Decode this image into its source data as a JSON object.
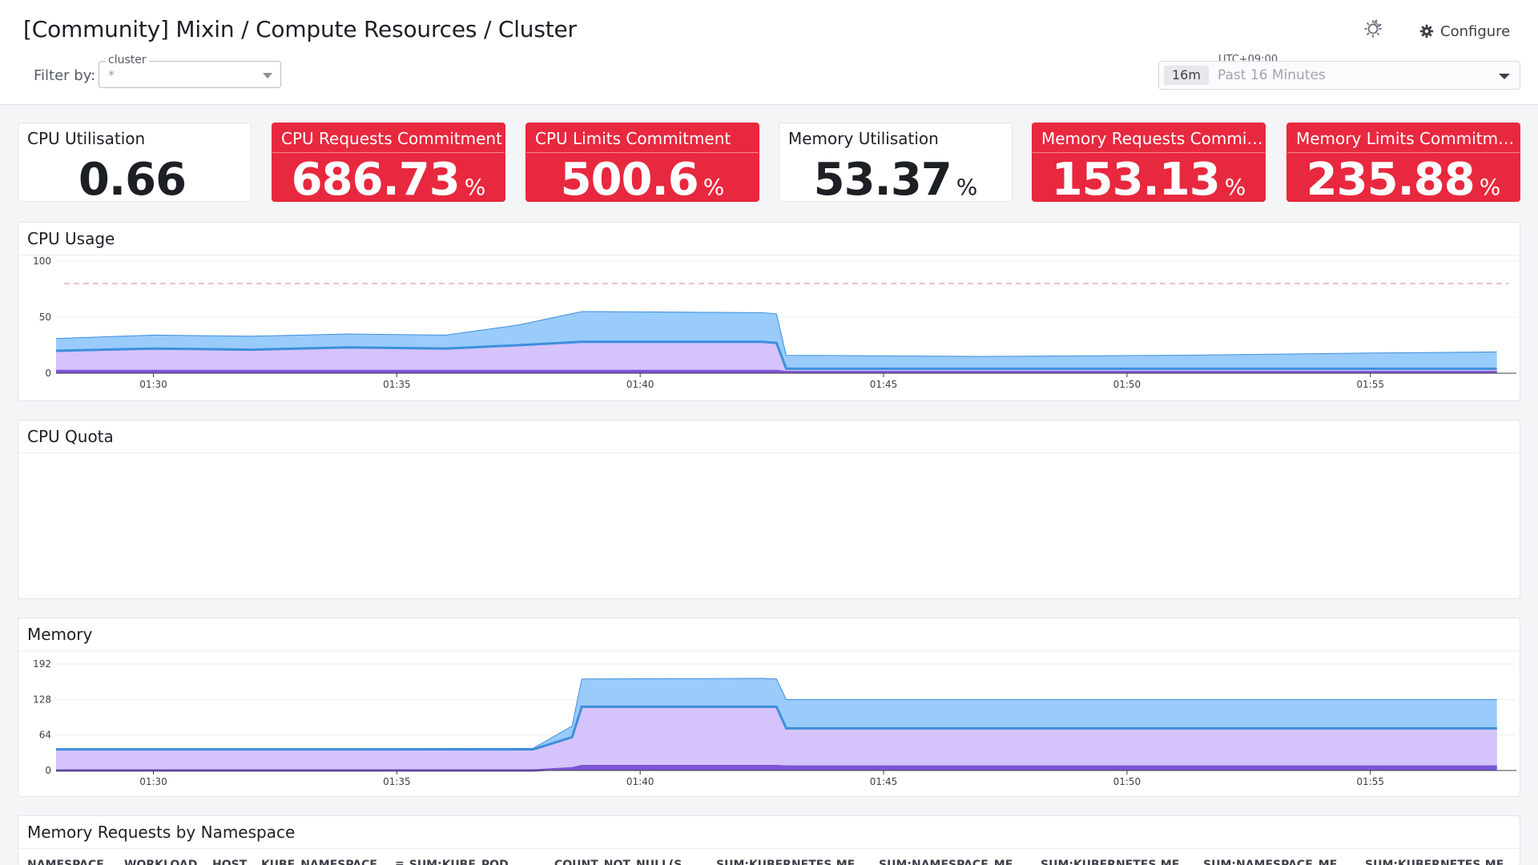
{
  "header": {
    "title": "[Community] Mixin / Compute Resources / Cluster",
    "configure_label": "Configure",
    "filter_label": "Filter by:",
    "cluster_filter": {
      "label": "cluster",
      "value": "*"
    },
    "timezone": "UTC+09:00",
    "time_range": {
      "badge": "16m",
      "label": "Past 16 Minutes"
    }
  },
  "stats": [
    {
      "title": "CPU Utilisation",
      "value": "0.66",
      "unit": "",
      "status": "normal"
    },
    {
      "title": "CPU Requests Commitment",
      "value": "686.73",
      "unit": "%",
      "status": "alert"
    },
    {
      "title": "CPU Limits Commitment",
      "value": "500.6",
      "unit": "%",
      "status": "alert"
    },
    {
      "title": "Memory Utilisation",
      "value": "53.37",
      "unit": "%",
      "status": "normal"
    },
    {
      "title": "Memory Requests Commit...",
      "value": "153.13",
      "unit": "%",
      "status": "alert"
    },
    {
      "title": "Memory Limits Commitment",
      "value": "235.88",
      "unit": "%",
      "status": "alert"
    }
  ],
  "colors": {
    "alert": "#e8283e",
    "series_light_blue": "#99cbfb",
    "series_blue": "#3d8fdb",
    "series_lavender": "#d5c3fb",
    "series_purple": "#7a55d6",
    "threshold": "#e69a9a"
  },
  "panels": {
    "cpu_usage": {
      "title": "CPU Usage"
    },
    "cpu_quota": {
      "title": "CPU Quota"
    },
    "memory": {
      "title": "Memory"
    },
    "mem_requests": {
      "title": "Memory Requests by Namespace",
      "columns": [
        "NAMESPACE",
        "WORKLOAD",
        "HOST",
        "KUBE_NAMESPACE",
        "SUM:KUBE_POD",
        "COUNT_NOT_NULL(S",
        "SUM:KUBERNETES.ME",
        "SUM:NAMESPACE_ME",
        "SUM:KUBERNETES.ME",
        "SUM:NAMESPACE_ME",
        "SUM:KUBERNETES.ME"
      ]
    }
  },
  "chart_data": [
    {
      "type": "area",
      "title": "CPU Usage",
      "x_ticks": [
        "01:30",
        "01:35",
        "01:40",
        "01:45",
        "01:50",
        "01:55"
      ],
      "y_ticks": [
        0,
        50,
        100
      ],
      "ylim": [
        0,
        100
      ],
      "threshold": 80,
      "x_minutes": [
        0,
        2,
        4,
        6,
        8,
        9.5,
        10.8,
        11,
        14.5,
        14.8,
        15,
        19,
        23,
        27,
        29.6
      ],
      "series": [
        {
          "values": [
            31,
            34,
            33,
            35,
            34,
            43,
            55,
            55,
            54,
            53,
            16,
            15,
            16,
            18,
            19
          ]
        },
        {
          "values": [
            20,
            22,
            21,
            23,
            22,
            25,
            28,
            28,
            28,
            27,
            4,
            4,
            4,
            4,
            4
          ]
        },
        {
          "values": [
            2,
            2,
            2,
            2,
            2,
            2,
            2,
            2,
            2,
            2,
            1,
            1,
            1,
            1,
            1
          ]
        }
      ]
    },
    {
      "type": "area",
      "title": "CPU Quota",
      "series": []
    },
    {
      "type": "area",
      "title": "Memory",
      "x_ticks": [
        "01:30",
        "01:35",
        "01:40",
        "01:45",
        "01:50",
        "01:55"
      ],
      "y_ticks": [
        0,
        64,
        128,
        192
      ],
      "ylim": [
        0,
        192
      ],
      "x_minutes": [
        0,
        9.8,
        10.6,
        10.8,
        14.5,
        14.8,
        15,
        29.6
      ],
      "series": [
        {
          "values": [
            38,
            40,
            80,
            165,
            166,
            165,
            128,
            128
          ]
        },
        {
          "values": [
            38,
            38,
            60,
            115,
            115,
            115,
            76,
            76
          ]
        },
        {
          "values": [
            0,
            0,
            4,
            8,
            8,
            8,
            7,
            7
          ]
        }
      ]
    }
  ]
}
